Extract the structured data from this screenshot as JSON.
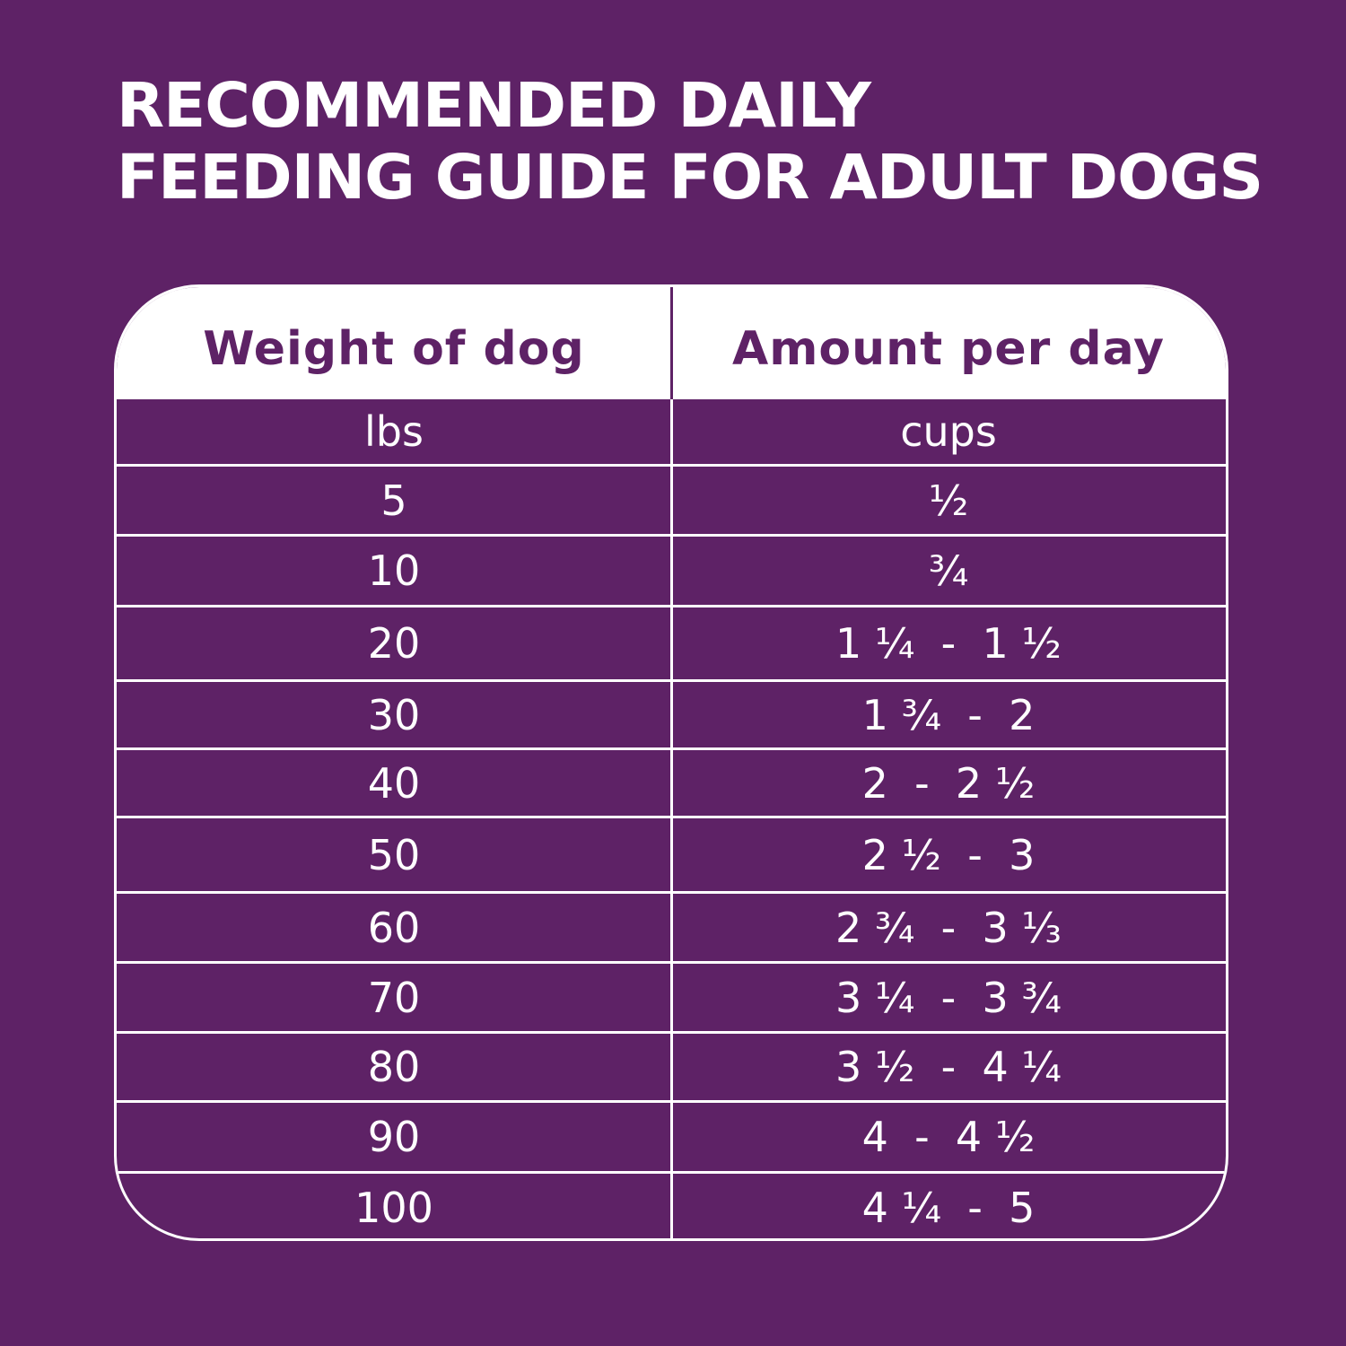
{
  "title": {
    "line1": "RECOMMENDED DAILY",
    "line2": "FEEDING GUIDE FOR ADULT DOGS"
  },
  "table": {
    "headers": [
      "Weight of dog",
      "Amount per day"
    ],
    "units": [
      "lbs",
      "cups"
    ],
    "rows": [
      [
        "5",
        "½"
      ],
      [
        "10",
        "¾"
      ],
      [
        "20",
        "1 ¼  -  1 ½"
      ],
      [
        "30",
        "1 ¾  -  2"
      ],
      [
        "40",
        "2  -  2 ½"
      ],
      [
        "50",
        "2 ½  -  3"
      ],
      [
        "60",
        "2 ¾  -  3 ⅓"
      ],
      [
        "70",
        "3 ¼  -  3 ¾"
      ],
      [
        "80",
        "3 ½  -  4 ¼"
      ],
      [
        "90",
        "4  -  4 ½"
      ],
      [
        "100",
        "4 ¼  -  5"
      ]
    ]
  },
  "colors": {
    "background": "#5e2266",
    "text": "#ffffff",
    "header_background": "#ffffff",
    "header_text": "#5e2266"
  }
}
